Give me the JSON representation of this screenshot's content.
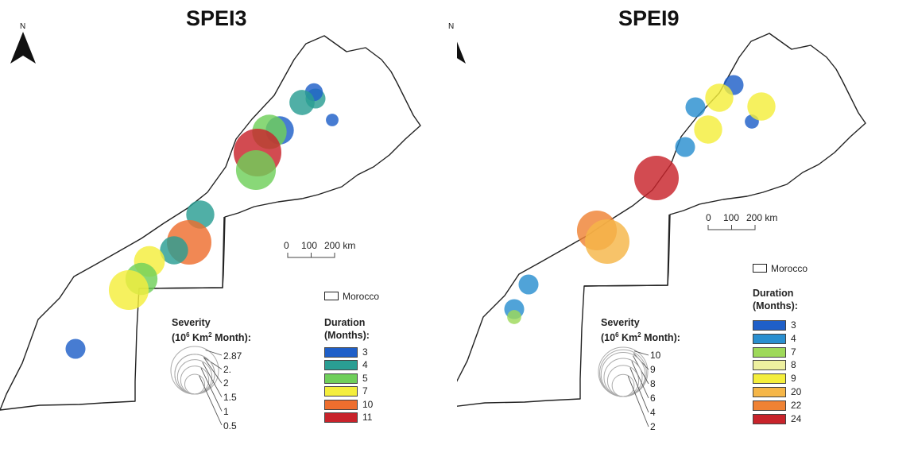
{
  "panels": [
    {
      "title": "SPEI3",
      "north_letter": "N",
      "scale_bar": {
        "ticks": [
          "0",
          "100",
          "200 km"
        ]
      },
      "morocco_label": "Morocco",
      "severity": {
        "title_line1": "Severity",
        "title_line2_pre": "(10",
        "title_sup1": "6",
        "title_mid": " Km",
        "title_sup2": "2",
        "title_post": " Month):",
        "values": [
          "2.87",
          "2.",
          "2",
          "1.5",
          "1",
          "0.5"
        ]
      },
      "duration": {
        "title_line1": "Duration",
        "title_line2": "(Months):",
        "classes": [
          {
            "label": "3",
            "color": "#1f5fc8"
          },
          {
            "label": "4",
            "color": "#2a9e93"
          },
          {
            "label": "5",
            "color": "#6fcf5a"
          },
          {
            "label": "7",
            "color": "#f4ee3c"
          },
          {
            "label": "10",
            "color": "#ee6e2e"
          },
          {
            "label": "11",
            "color": "#c8232b"
          }
        ]
      },
      "events": [
        {
          "duration": 4,
          "severity": 0.5
        },
        {
          "duration": 3,
          "severity": 0.4
        },
        {
          "duration": 3,
          "severity": 0.2
        },
        {
          "duration": 4,
          "severity": 0.8
        },
        {
          "duration": 3,
          "severity": 1.0
        },
        {
          "duration": 5,
          "severity": 1.5
        },
        {
          "duration": 11,
          "severity": 2.87
        },
        {
          "duration": 5,
          "severity": 2.0
        },
        {
          "duration": 4,
          "severity": 1.0
        },
        {
          "duration": 10,
          "severity": 2.5
        },
        {
          "duration": 4,
          "severity": 1.0
        },
        {
          "duration": 7,
          "severity": 1.2
        },
        {
          "duration": 5,
          "severity": 1.3
        },
        {
          "duration": 7,
          "severity": 2.0
        },
        {
          "duration": 3,
          "severity": 0.5
        }
      ]
    },
    {
      "title": "SPEI9",
      "north_letter": "N",
      "scale_bar": {
        "ticks": [
          "0",
          "100",
          "200 km"
        ]
      },
      "morocco_label": "Morocco",
      "severity": {
        "title_line1": "Severity",
        "title_line2_pre": "(10",
        "title_sup1": "6",
        "title_mid": " Km",
        "title_sup2": "2",
        "title_post": " Month):",
        "values": [
          "10",
          "9",
          "8",
          "6",
          "4",
          "2"
        ]
      },
      "duration": {
        "title_line1": "Duration",
        "title_line2": "(Months):",
        "classes": [
          {
            "label": "3",
            "color": "#1f5fc8"
          },
          {
            "label": "4",
            "color": "#2a8fd0"
          },
          {
            "label": "7",
            "color": "#9ed95a"
          },
          {
            "label": "8",
            "color": "#eef0a0"
          },
          {
            "label": "9",
            "color": "#f4ee3c"
          },
          {
            "label": "20",
            "color": "#f5b648"
          },
          {
            "label": "22",
            "color": "#ef8234"
          },
          {
            "label": "24",
            "color": "#c8232b"
          }
        ]
      },
      "events": [
        {
          "duration": 3,
          "severity": 2
        },
        {
          "duration": 9,
          "severity": 4
        },
        {
          "duration": 9,
          "severity": 4
        },
        {
          "duration": 4,
          "severity": 2
        },
        {
          "duration": 3,
          "severity": 1
        },
        {
          "duration": 9,
          "severity": 4
        },
        {
          "duration": 4,
          "severity": 2
        },
        {
          "duration": 24,
          "severity": 10
        },
        {
          "duration": 22,
          "severity": 8
        },
        {
          "duration": 20,
          "severity": 10
        },
        {
          "duration": 4,
          "severity": 2
        },
        {
          "duration": 4,
          "severity": 2
        },
        {
          "duration": 7,
          "severity": 1
        }
      ]
    }
  ]
}
